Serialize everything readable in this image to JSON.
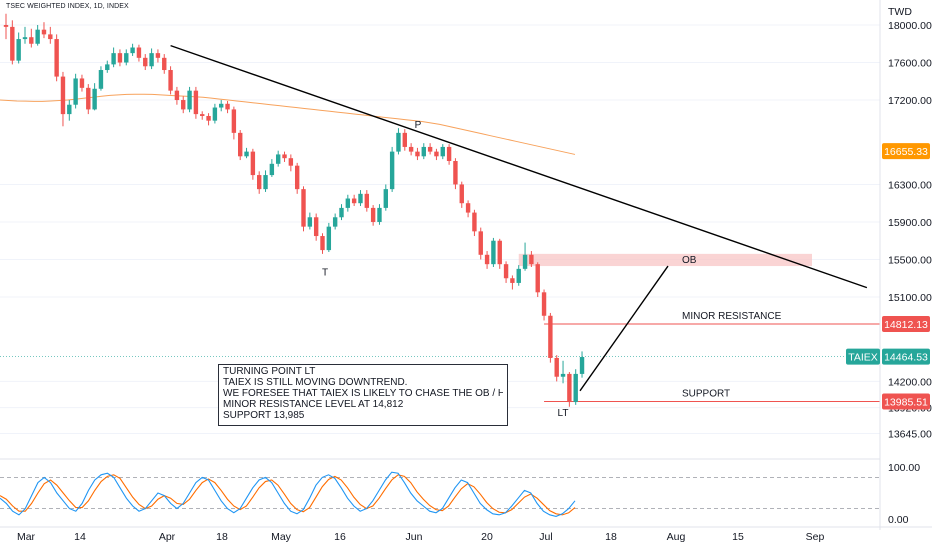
{
  "header": {
    "symbol_title": "TSEC WEIGHTED INDEX, 1D, INDEX",
    "currency": "TWD"
  },
  "note": {
    "lines": [
      "TURNING POINT LT",
      "TAIEX IS STILL MOVING DOWNTREND.",
      "WE FORESEE THAT TAIEX IS LIKELY TO CHASE THE OB / H.RESISTANCE",
      "MINOR RESISTANCE LEVEL AT 14,812",
      "SUPPORT 13,985"
    ]
  },
  "colors": {
    "up": "#26a69a",
    "down": "#ef5350",
    "ma": "#f7a25c",
    "last_price_tag": "#26a69a",
    "current_tag": "#ff9800",
    "resistance_tag": "#ef5350",
    "stoch_k": "#2196f3",
    "stoch_d": "#ff6d00",
    "ob_zone": "#f8c6c6"
  },
  "chart_data": {
    "type": "candlestick",
    "y_axis": {
      "range": [
        13500,
        18150
      ],
      "ticks": [
        18000,
        17600,
        17200,
        16300,
        15900,
        15500,
        15100,
        14200,
        13920,
        13645
      ]
    },
    "x_axis": {
      "ticks": [
        "Mar",
        "14",
        "Apr",
        "18",
        "May",
        "16",
        "Jun",
        "20",
        "Jul",
        "18",
        "Aug",
        "15",
        "Sep"
      ]
    },
    "price_tags": [
      {
        "label": "16655.33",
        "value": 16655.33,
        "color_key": "current_tag"
      },
      {
        "label": "14812.13",
        "value": 14812.13,
        "color_key": "resistance_tag"
      },
      {
        "label": "TAIEX",
        "value": 14464.53,
        "color_key": "last_price_tag"
      },
      {
        "label": "14464.53",
        "value": 14464.53,
        "color_key": "last_price_tag"
      },
      {
        "label": "13985.51",
        "value": 13985.51,
        "color_key": "resistance_tag"
      }
    ],
    "levels": [
      {
        "name": "MINOR RESISTANCE",
        "value": 14812.13
      },
      {
        "name": "SUPPORT",
        "value": 13985.51
      }
    ],
    "ob_zone": {
      "label": "OB",
      "low": 15430,
      "high": 15560
    },
    "annotations": [
      {
        "text": "P",
        "value": 16900
      },
      {
        "text": "T",
        "value": 15330
      },
      {
        "text": "LT",
        "value": 13830
      }
    ],
    "candles": [
      [
        18000,
        17980,
        18120,
        17850
      ],
      [
        17980,
        17620,
        18050,
        17580
      ],
      [
        17620,
        17850,
        17920,
        17590
      ],
      [
        17850,
        17870,
        17980,
        17800
      ],
      [
        17870,
        17800,
        17960,
        17760
      ],
      [
        17800,
        17950,
        18000,
        17780
      ],
      [
        17950,
        17900,
        18030,
        17860
      ],
      [
        17900,
        17850,
        17980,
        17800
      ],
      [
        17850,
        17450,
        17900,
        17400
      ],
      [
        17450,
        17050,
        17500,
        16920
      ],
      [
        17050,
        17150,
        17200,
        16980
      ],
      [
        17150,
        17430,
        17480,
        17110
      ],
      [
        17430,
        17330,
        17470,
        17290
      ],
      [
        17330,
        17100,
        17370,
        17050
      ],
      [
        17100,
        17320,
        17380,
        17090
      ],
      [
        17320,
        17520,
        17560,
        17300
      ],
      [
        17520,
        17580,
        17620,
        17490
      ],
      [
        17580,
        17700,
        17760,
        17550
      ],
      [
        17700,
        17600,
        17740,
        17560
      ],
      [
        17600,
        17700,
        17740,
        17570
      ],
      [
        17700,
        17760,
        17800,
        17670
      ],
      [
        17760,
        17650,
        17790,
        17610
      ],
      [
        17650,
        17560,
        17690,
        17520
      ],
      [
        17560,
        17700,
        17750,
        17530
      ],
      [
        17700,
        17650,
        17740,
        17600
      ],
      [
        17650,
        17520,
        17690,
        17480
      ],
      [
        17520,
        17300,
        17560,
        17260
      ],
      [
        17300,
        17200,
        17340,
        17150
      ],
      [
        17200,
        17100,
        17240,
        17060
      ],
      [
        17100,
        17300,
        17340,
        17070
      ],
      [
        17300,
        17050,
        17340,
        17000
      ],
      [
        17050,
        17030,
        17080,
        16990
      ],
      [
        17030,
        16980,
        17060,
        16930
      ],
      [
        16980,
        17120,
        17160,
        16950
      ],
      [
        17120,
        17160,
        17200,
        17080
      ],
      [
        17160,
        17100,
        17190,
        17060
      ],
      [
        17100,
        16850,
        17130,
        16780
      ],
      [
        16850,
        16600,
        16880,
        16560
      ],
      [
        16600,
        16650,
        16690,
        16580
      ],
      [
        16650,
        16400,
        16680,
        16350
      ],
      [
        16400,
        16250,
        16440,
        16200
      ],
      [
        16250,
        16400,
        16450,
        16220
      ],
      [
        16400,
        16520,
        16570,
        16380
      ],
      [
        16520,
        16620,
        16660,
        16490
      ],
      [
        16620,
        16580,
        16650,
        16540
      ],
      [
        16580,
        16500,
        16620,
        16440
      ],
      [
        16500,
        16250,
        16530,
        16200
      ],
      [
        16250,
        15850,
        16280,
        15800
      ],
      [
        15850,
        15950,
        16000,
        15820
      ],
      [
        15950,
        15750,
        15990,
        15700
      ],
      [
        15750,
        15600,
        15780,
        15560
      ],
      [
        15600,
        15850,
        15890,
        15580
      ],
      [
        15850,
        15950,
        15990,
        15820
      ],
      [
        15950,
        16050,
        16090,
        15920
      ],
      [
        16050,
        16150,
        16190,
        16010
      ],
      [
        16150,
        16100,
        16190,
        16070
      ],
      [
        16100,
        16200,
        16240,
        16070
      ],
      [
        16200,
        16050,
        16240,
        16010
      ],
      [
        16050,
        15900,
        16080,
        15860
      ],
      [
        15900,
        16050,
        16090,
        15870
      ],
      [
        16050,
        16250,
        16300,
        16020
      ],
      [
        16250,
        16650,
        16700,
        16220
      ],
      [
        16650,
        16850,
        16900,
        16620
      ],
      [
        16850,
        16700,
        16890,
        16660
      ],
      [
        16700,
        16650,
        16740,
        16610
      ],
      [
        16650,
        16600,
        16690,
        16560
      ],
      [
        16600,
        16700,
        16740,
        16570
      ],
      [
        16700,
        16650,
        16740,
        16620
      ],
      [
        16650,
        16600,
        16680,
        16560
      ],
      [
        16600,
        16700,
        16730,
        16570
      ],
      [
        16700,
        16550,
        16730,
        16510
      ],
      [
        16550,
        16300,
        16580,
        16250
      ],
      [
        16300,
        16100,
        16330,
        16050
      ],
      [
        16100,
        16000,
        16130,
        15950
      ],
      [
        16000,
        15800,
        16030,
        15750
      ],
      [
        15800,
        15550,
        15840,
        15500
      ],
      [
        15550,
        15450,
        15590,
        15400
      ],
      [
        15450,
        15700,
        15730,
        15420
      ],
      [
        15700,
        15450,
        15720,
        15400
      ],
      [
        15450,
        15300,
        15480,
        15250
      ],
      [
        15300,
        15250,
        15330,
        15180
      ],
      [
        15250,
        15400,
        15440,
        15220
      ],
      [
        15400,
        15550,
        15680,
        15380
      ],
      [
        15550,
        15450,
        15590,
        15420
      ],
      [
        15450,
        15150,
        15470,
        15100
      ],
      [
        15150,
        14900,
        15180,
        14850
      ],
      [
        14900,
        14450,
        14930,
        14400
      ],
      [
        14450,
        14250,
        14480,
        14200
      ],
      [
        14250,
        14280,
        14420,
        14180
      ],
      [
        14280,
        13980,
        14300,
        13930
      ],
      [
        13980,
        14280,
        14330,
        13950
      ],
      [
        14280,
        14460,
        14520,
        14240
      ]
    ],
    "ma_series": [
      17200,
      17195,
      17190,
      17188,
      17186,
      17186,
      17190,
      17195,
      17200,
      17210,
      17220,
      17230,
      17240,
      17250,
      17255,
      17260,
      17262,
      17262,
      17260,
      17255,
      17250,
      17245,
      17240,
      17235,
      17230,
      17220,
      17210,
      17200,
      17190,
      17180,
      17170,
      17160,
      17150,
      17140,
      17130,
      17120,
      17110,
      17100,
      17090,
      17080,
      17070,
      17060,
      17050,
      17040,
      17030,
      17020,
      17010,
      17000,
      16990,
      16980,
      16970,
      16955,
      16940,
      16920,
      16900,
      16880,
      16860,
      16840,
      16820,
      16800,
      16780,
      16760,
      16740,
      16720,
      16700,
      16680,
      16660,
      16640,
      16620
    ],
    "trendline": {
      "start_index": 26,
      "start_value": 17780,
      "end_index": 136,
      "end_value": 15200
    },
    "oscillator": {
      "range": [
        0,
        100
      ],
      "ticks": [
        "100.00",
        "0.00"
      ],
      "k": [
        40,
        30,
        15,
        8,
        20,
        45,
        70,
        80,
        70,
        50,
        35,
        20,
        15,
        30,
        55,
        75,
        85,
        88,
        80,
        60,
        40,
        25,
        15,
        20,
        35,
        50,
        45,
        30,
        20,
        30,
        50,
        70,
        80,
        75,
        55,
        35,
        20,
        12,
        20,
        40,
        60,
        75,
        80,
        70,
        50,
        30,
        15,
        10,
        18,
        40,
        65,
        80,
        85,
        78,
        60,
        40,
        25,
        15,
        20,
        35,
        55,
        75,
        90,
        88,
        70,
        50,
        35,
        25,
        15,
        12,
        20,
        40,
        60,
        75,
        70,
        50,
        30,
        18,
        10,
        8,
        12,
        25,
        40,
        55,
        50,
        30,
        15,
        8,
        5,
        10,
        20,
        35
      ],
      "d": [
        45,
        38,
        25,
        15,
        15,
        30,
        50,
        68,
        75,
        65,
        50,
        35,
        22,
        22,
        35,
        55,
        72,
        82,
        85,
        78,
        60,
        42,
        28,
        20,
        25,
        38,
        45,
        40,
        30,
        28,
        38,
        55,
        70,
        77,
        70,
        55,
        38,
        25,
        18,
        25,
        42,
        60,
        72,
        75,
        65,
        48,
        30,
        18,
        14,
        22,
        42,
        62,
        76,
        82,
        75,
        60,
        42,
        28,
        20,
        25,
        40,
        58,
        75,
        85,
        82,
        70,
        52,
        38,
        26,
        18,
        16,
        25,
        42,
        58,
        68,
        62,
        48,
        32,
        20,
        13,
        12,
        18,
        30,
        42,
        48,
        40,
        28,
        16,
        10,
        8,
        12,
        22
      ]
    }
  }
}
